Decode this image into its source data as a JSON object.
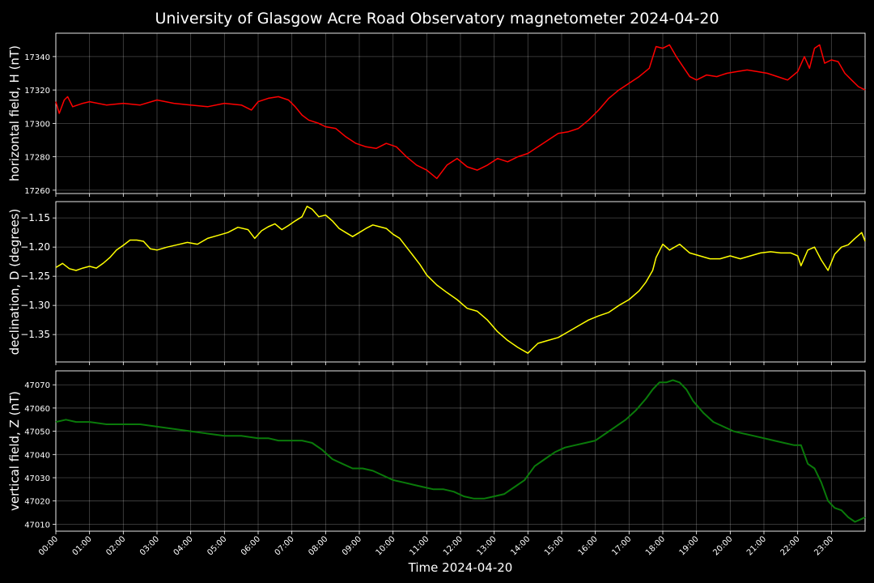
{
  "title": "University of Glasgow Acre Road Observatory magnetometer 2024-04-20",
  "xlabel": "Time 2024-04-20",
  "x_ticks": [
    "00:00",
    "01:00",
    "02:00",
    "03:00",
    "04:00",
    "05:00",
    "06:00",
    "07:00",
    "08:00",
    "09:00",
    "10:00",
    "11:00",
    "12:00",
    "13:00",
    "14:00",
    "15:00",
    "16:00",
    "17:00",
    "18:00",
    "19:00",
    "20:00",
    "21:00",
    "22:00",
    "23:00"
  ],
  "grid": true,
  "chart_data": [
    {
      "type": "line",
      "ylabel": "horizontal field, H (nT)",
      "color": "#ff0000",
      "x_unit": "hours",
      "xlim": [
        0,
        24
      ],
      "ylim": [
        17258,
        17354
      ],
      "y_ticks": [
        17260,
        17280,
        17300,
        17320,
        17340
      ],
      "y_tick_labels": [
        "17260",
        "17280",
        "17300",
        "17320",
        "17340"
      ],
      "x": [
        0,
        0.1,
        0.25,
        0.35,
        0.5,
        0.8,
        1.0,
        1.5,
        2.0,
        2.5,
        3.0,
        3.5,
        4.0,
        4.5,
        5.0,
        5.5,
        5.8,
        6.0,
        6.3,
        6.6,
        6.9,
        7.1,
        7.3,
        7.5,
        7.8,
        8.0,
        8.3,
        8.6,
        8.9,
        9.2,
        9.5,
        9.8,
        10.1,
        10.4,
        10.7,
        11.0,
        11.3,
        11.6,
        11.9,
        12.2,
        12.5,
        12.8,
        13.1,
        13.4,
        13.7,
        14.0,
        14.3,
        14.6,
        14.9,
        15.2,
        15.5,
        15.8,
        16.1,
        16.4,
        16.7,
        17.0,
        17.3,
        17.6,
        17.8,
        18.0,
        18.2,
        18.4,
        18.6,
        18.8,
        19.0,
        19.3,
        19.6,
        19.9,
        20.2,
        20.5,
        20.8,
        21.1,
        21.4,
        21.7,
        22.0,
        22.2,
        22.35,
        22.5,
        22.65,
        22.8,
        23.0,
        23.2,
        23.4,
        23.6,
        23.8,
        24.0
      ],
      "y": [
        17313,
        17306,
        17314,
        17316,
        17310,
        17312,
        17313,
        17311,
        17312,
        17311,
        17314,
        17312,
        17311,
        17310,
        17312,
        17311,
        17308,
        17313,
        17315,
        17316,
        17314,
        17310,
        17305,
        17302,
        17300,
        17298,
        17297,
        17292,
        17288,
        17286,
        17285,
        17288,
        17286,
        17280,
        17275,
        17272,
        17267,
        17275,
        17279,
        17274,
        17272,
        17275,
        17279,
        17277,
        17280,
        17282,
        17286,
        17290,
        17294,
        17295,
        17297,
        17302,
        17308,
        17315,
        17320,
        17324,
        17328,
        17333,
        17346,
        17345,
        17347,
        17340,
        17334,
        17328,
        17326,
        17329,
        17328,
        17330,
        17331,
        17332,
        17331,
        17330,
        17328,
        17326,
        17331,
        17340,
        17333,
        17345,
        17347,
        17336,
        17338,
        17337,
        17330,
        17326,
        17322,
        17320
      ]
    },
    {
      "type": "line",
      "ylabel": "declination, D (degrees)",
      "color": "#ffff00",
      "x_unit": "hours",
      "xlim": [
        0,
        24
      ],
      "ylim": [
        -1.397,
        -1.122
      ],
      "y_ticks": [
        -1.35,
        -1.3,
        -1.25,
        -1.2,
        -1.15
      ],
      "y_tick_labels": [
        "−1.35",
        "−1.30",
        "−1.25",
        "−1.20",
        "−1.15"
      ],
      "x": [
        0,
        0.2,
        0.4,
        0.6,
        0.8,
        1.0,
        1.2,
        1.4,
        1.6,
        1.8,
        2.0,
        2.2,
        2.4,
        2.6,
        2.8,
        3.0,
        3.3,
        3.6,
        3.9,
        4.2,
        4.5,
        4.8,
        5.1,
        5.4,
        5.7,
        5.9,
        6.1,
        6.3,
        6.5,
        6.7,
        6.9,
        7.1,
        7.3,
        7.45,
        7.6,
        7.8,
        8.0,
        8.2,
        8.4,
        8.6,
        8.8,
        9.0,
        9.2,
        9.4,
        9.6,
        9.8,
        10.0,
        10.2,
        10.4,
        10.6,
        10.8,
        11.0,
        11.3,
        11.6,
        11.9,
        12.2,
        12.5,
        12.8,
        13.1,
        13.4,
        13.7,
        14.0,
        14.3,
        14.6,
        14.9,
        15.2,
        15.5,
        15.8,
        16.1,
        16.4,
        16.7,
        17.0,
        17.3,
        17.5,
        17.7,
        17.8,
        18.0,
        18.2,
        18.5,
        18.8,
        19.1,
        19.4,
        19.7,
        20.0,
        20.3,
        20.6,
        20.9,
        21.2,
        21.5,
        21.8,
        22.0,
        22.1,
        22.3,
        22.5,
        22.7,
        22.9,
        23.1,
        23.3,
        23.5,
        23.7,
        23.9,
        24.0
      ],
      "y": [
        -1.235,
        -1.228,
        -1.237,
        -1.24,
        -1.236,
        -1.233,
        -1.236,
        -1.228,
        -1.218,
        -1.205,
        -1.197,
        -1.188,
        -1.188,
        -1.19,
        -1.203,
        -1.205,
        -1.2,
        -1.196,
        -1.192,
        -1.195,
        -1.185,
        -1.18,
        -1.175,
        -1.166,
        -1.17,
        -1.185,
        -1.172,
        -1.165,
        -1.16,
        -1.17,
        -1.163,
        -1.155,
        -1.148,
        -1.13,
        -1.135,
        -1.148,
        -1.145,
        -1.155,
        -1.168,
        -1.175,
        -1.182,
        -1.175,
        -1.168,
        -1.162,
        -1.165,
        -1.168,
        -1.178,
        -1.185,
        -1.2,
        -1.215,
        -1.23,
        -1.248,
        -1.265,
        -1.278,
        -1.29,
        -1.305,
        -1.31,
        -1.325,
        -1.345,
        -1.36,
        -1.372,
        -1.382,
        -1.365,
        -1.36,
        -1.355,
        -1.345,
        -1.335,
        -1.325,
        -1.318,
        -1.312,
        -1.3,
        -1.29,
        -1.275,
        -1.26,
        -1.24,
        -1.218,
        -1.195,
        -1.205,
        -1.195,
        -1.21,
        -1.215,
        -1.22,
        -1.22,
        -1.215,
        -1.22,
        -1.215,
        -1.21,
        -1.208,
        -1.21,
        -1.21,
        -1.215,
        -1.232,
        -1.205,
        -1.2,
        -1.222,
        -1.24,
        -1.212,
        -1.2,
        -1.196,
        -1.185,
        -1.175,
        -1.19
      ]
    },
    {
      "type": "line",
      "ylabel": "vertical field, Z (nT)",
      "color": "#0a7a0a",
      "x_unit": "hours",
      "xlim": [
        0,
        24
      ],
      "ylim": [
        47007,
        47076
      ],
      "y_ticks": [
        47010,
        47020,
        47030,
        47040,
        47050,
        47060,
        47070
      ],
      "y_tick_labels": [
        "47010",
        "47020",
        "47030",
        "47040",
        "47050",
        "47060",
        "47070"
      ],
      "x": [
        0,
        0.3,
        0.6,
        1.0,
        1.5,
        2.0,
        2.5,
        3.0,
        3.5,
        4.0,
        4.5,
        5.0,
        5.5,
        6.0,
        6.3,
        6.6,
        7.0,
        7.3,
        7.6,
        7.9,
        8.2,
        8.5,
        8.8,
        9.1,
        9.4,
        9.7,
        10.0,
        10.3,
        10.6,
        10.9,
        11.2,
        11.5,
        11.8,
        12.1,
        12.4,
        12.7,
        13.0,
        13.3,
        13.6,
        13.9,
        14.2,
        14.5,
        14.8,
        15.1,
        15.4,
        15.7,
        16.0,
        16.3,
        16.6,
        16.9,
        17.2,
        17.5,
        17.7,
        17.9,
        18.1,
        18.3,
        18.5,
        18.7,
        18.9,
        19.2,
        19.5,
        19.8,
        20.1,
        20.4,
        20.7,
        21.0,
        21.3,
        21.6,
        21.9,
        22.1,
        22.3,
        22.5,
        22.7,
        22.9,
        23.1,
        23.3,
        23.5,
        23.7,
        23.85,
        24.0
      ],
      "y": [
        47054,
        47055,
        47054,
        47054,
        47053,
        47053,
        47053,
        47052,
        47051,
        47050,
        47049,
        47048,
        47048,
        47047,
        47047,
        47046,
        47046,
        47046,
        47045,
        47042,
        47038,
        47036,
        47034,
        47034,
        47033,
        47031,
        47029,
        47028,
        47027,
        47026,
        47025,
        47025,
        47024,
        47022,
        47021,
        47021,
        47022,
        47023,
        47026,
        47029,
        47035,
        47038,
        47041,
        47043,
        47044,
        47045,
        47046,
        47049,
        47052,
        47055,
        47059,
        47064,
        47068,
        47071,
        47071,
        47072,
        47071,
        47068,
        47063,
        47058,
        47054,
        47052,
        47050,
        47049,
        47048,
        47047,
        47046,
        47045,
        47044,
        47044,
        47036,
        47034,
        47028,
        47020,
        47017,
        47016,
        47013,
        47011,
        47012,
        47013
      ]
    }
  ]
}
